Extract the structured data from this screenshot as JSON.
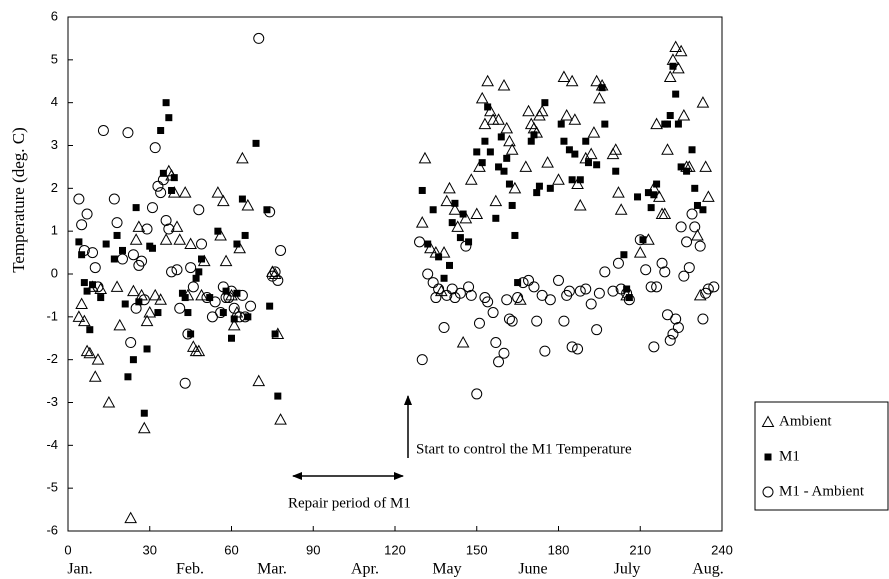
{
  "chart_data": {
    "type": "scatter",
    "y_label": "Temperature (deg. C)",
    "xlim": [
      0,
      240
    ],
    "xticks": [
      0,
      30,
      60,
      90,
      120,
      150,
      180,
      210,
      240
    ],
    "ylim": [
      -6,
      6
    ],
    "yticks": [
      -6,
      -5,
      -4,
      -3,
      -2,
      -1,
      0,
      1,
      2,
      3,
      4,
      5,
      6
    ],
    "grid": false,
    "legend": "outside-right",
    "month_labels": [
      "Jan.",
      "Feb.",
      "Mar.",
      "Apr.",
      "May",
      "June",
      "July",
      "Aug."
    ],
    "annotations": [
      "Repair period of M1",
      "Start to control the M1 Temperature"
    ],
    "series": [
      {
        "name": "Ambient",
        "marker": "triangle",
        "color": "#000000",
        "x": [
          4,
          5,
          6,
          7,
          8,
          9,
          10,
          11,
          12,
          15,
          18,
          19,
          23,
          24,
          25,
          26,
          27,
          28,
          29,
          30,
          32,
          34,
          36,
          37,
          38,
          39,
          40,
          41,
          43,
          44,
          45,
          46,
          47,
          48,
          49,
          50,
          55,
          56,
          57,
          58,
          60,
          61,
          62,
          63,
          64,
          66,
          70,
          75,
          77,
          78,
          76,
          130,
          131,
          133,
          135,
          137,
          138,
          139,
          140,
          142,
          143,
          145,
          146,
          148,
          150,
          151,
          152,
          153,
          154,
          155,
          156,
          157,
          158,
          160,
          161,
          162,
          163,
          164,
          166,
          168,
          169,
          170,
          171,
          172,
          173,
          174,
          176,
          180,
          182,
          183,
          185,
          186,
          187,
          188,
          190,
          192,
          193,
          194,
          195,
          196,
          200,
          201,
          202,
          203,
          205,
          210,
          213,
          215,
          216,
          217,
          218,
          219,
          220,
          221,
          222,
          223,
          224,
          225,
          226,
          227,
          228,
          231,
          232,
          233,
          234,
          235
        ],
        "values": [
          -1,
          -0.7,
          -1.1,
          -1.8,
          -1.85,
          -0.3,
          -2.4,
          -2,
          -0.35,
          -3,
          -0.3,
          -1.2,
          -5.7,
          -0.4,
          0.8,
          1.1,
          -0.5,
          -3.6,
          -1.1,
          -0.9,
          -0.5,
          -0.6,
          0.8,
          2.4,
          2.3,
          1.9,
          1.1,
          0.8,
          1.9,
          -0.5,
          0.7,
          -1.7,
          -1.8,
          -1.8,
          -0.5,
          0.3,
          1.9,
          0.9,
          1.7,
          0.3,
          -0.5,
          -1.2,
          -0.9,
          0.6,
          2.7,
          1.6,
          -2.5,
          0.05,
          -1.4,
          -3.4,
          0,
          1.2,
          2.7,
          0.6,
          0.5,
          -0.4,
          0.5,
          1.7,
          2,
          1.5,
          1.1,
          -1.6,
          1.3,
          2.2,
          1.4,
          2.5,
          4.1,
          3.5,
          4.5,
          3.8,
          3.6,
          1.7,
          3.6,
          4.4,
          3.4,
          3.1,
          2.9,
          2,
          -0.6,
          2.5,
          3.8,
          3.5,
          3.4,
          3.3,
          3.7,
          3.8,
          2.6,
          2.2,
          4.6,
          3.7,
          4.5,
          3.6,
          2.1,
          1.6,
          2.7,
          2.8,
          3.3,
          4.5,
          4.1,
          4.4,
          2.8,
          2.9,
          1.9,
          1.5,
          -0.5,
          0.5,
          0.8,
          2,
          3.5,
          1.8,
          1.4,
          1.4,
          2.9,
          4.6,
          5,
          5.3,
          4.8,
          5.2,
          3.7,
          2.5,
          2.5,
          0.9,
          -0.5,
          4,
          2.5,
          1.8
        ]
      },
      {
        "name": "M1",
        "marker": "square",
        "color": "#000000",
        "x": [
          4,
          5,
          6,
          7,
          8,
          9,
          12,
          14,
          17,
          18,
          20,
          21,
          22,
          24,
          25,
          26,
          28,
          29,
          30,
          31,
          33,
          34,
          35,
          36,
          37,
          38,
          39,
          42,
          43,
          44,
          45,
          47,
          48,
          49,
          52,
          55,
          57,
          58,
          60,
          61,
          62,
          64,
          65,
          66,
          69,
          73,
          74,
          76,
          77,
          62,
          130,
          132,
          134,
          136,
          138,
          140,
          141,
          142,
          144,
          145,
          147,
          150,
          152,
          153,
          154,
          155,
          157,
          158,
          159,
          160,
          161,
          162,
          163,
          164,
          165,
          170,
          171,
          172,
          173,
          175,
          177,
          181,
          182,
          184,
          185,
          186,
          188,
          190,
          191,
          194,
          196,
          197,
          201,
          204,
          205,
          206,
          209,
          211,
          213,
          214,
          215,
          216,
          219,
          220,
          221,
          222,
          223,
          224,
          225,
          227,
          229,
          230,
          231,
          233
        ],
        "values": [
          0.75,
          0.45,
          -0.2,
          -0.4,
          -1.3,
          -0.25,
          -0.55,
          0.7,
          0.35,
          0.9,
          0.55,
          -0.7,
          -2.4,
          -2,
          1.55,
          -0.65,
          -3.25,
          -1.75,
          0.65,
          0.6,
          -0.9,
          3.35,
          2.35,
          4,
          3.65,
          1.95,
          2.25,
          -0.45,
          -0.55,
          -0.9,
          -1.4,
          -0.1,
          0.05,
          0.35,
          -0.55,
          1,
          -0.9,
          -0.4,
          -1.5,
          -1.05,
          -0.45,
          1.75,
          0.9,
          -1,
          3.05,
          1.5,
          -0.75,
          -1.4,
          -2.85,
          0.7,
          1.95,
          0.7,
          1.5,
          0.4,
          -0.1,
          0.2,
          1.2,
          1.65,
          0.85,
          1.4,
          0.75,
          2.85,
          2.6,
          3.1,
          3.9,
          2.85,
          1.3,
          2.5,
          3.2,
          2.4,
          2.7,
          2.1,
          1.6,
          0.9,
          -0.2,
          3.1,
          3.25,
          1.9,
          2.05,
          4,
          2,
          3.5,
          3.1,
          2.9,
          2.2,
          2.8,
          2.2,
          3.1,
          2.6,
          2.55,
          4.35,
          3.5,
          2.4,
          0.45,
          -0.35,
          -0.55,
          1.8,
          0.8,
          1.9,
          1.55,
          1.85,
          2.1,
          3.5,
          3.5,
          3.7,
          4.85,
          4.2,
          3.5,
          2.5,
          2.4,
          2.9,
          2,
          1.6,
          1.5
        ]
      },
      {
        "name": "M1 - Ambient",
        "marker": "circle",
        "color": "#000000",
        "x": [
          4,
          5,
          6,
          7,
          9,
          10,
          11,
          13,
          17,
          18,
          20,
          22,
          23,
          24,
          25,
          26,
          27,
          28,
          29,
          31,
          32,
          33,
          34,
          35,
          36,
          37,
          38,
          40,
          41,
          43,
          44,
          45,
          46,
          48,
          49,
          51,
          53,
          54,
          56,
          57,
          58,
          59,
          60,
          61,
          63,
          64,
          65,
          67,
          70,
          74,
          75,
          76,
          77,
          78,
          129,
          130,
          132,
          134,
          135,
          136,
          138,
          139,
          141,
          142,
          144,
          146,
          147,
          148,
          150,
          151,
          153,
          154,
          156,
          157,
          158,
          160,
          161,
          162,
          163,
          165,
          167,
          169,
          171,
          172,
          174,
          175,
          177,
          180,
          182,
          183,
          184,
          185,
          187,
          188,
          190,
          192,
          194,
          195,
          197,
          200,
          202,
          203,
          205,
          206,
          210,
          212,
          214,
          215,
          216,
          218,
          219,
          220,
          221,
          222,
          223,
          224,
          225,
          226,
          227,
          228,
          229,
          230,
          232,
          233,
          234,
          235,
          237
        ],
        "values": [
          1.75,
          1.15,
          0.55,
          1.4,
          0.5,
          0.15,
          -0.3,
          3.35,
          1.75,
          1.2,
          0.35,
          3.3,
          -1.6,
          0.45,
          -0.8,
          0.2,
          0.3,
          -0.6,
          1.05,
          1.55,
          2.95,
          2.05,
          1.9,
          2.2,
          1.25,
          1.05,
          0.05,
          0.1,
          -0.8,
          -2.55,
          -1.4,
          0.15,
          -0.3,
          1.5,
          0.7,
          -0.55,
          -1,
          -0.65,
          -0.9,
          -0.3,
          -0.55,
          -0.55,
          -0.4,
          -0.8,
          -1,
          -0.5,
          -1,
          -0.75,
          5.5,
          1.45,
          -0.05,
          0.05,
          -0.15,
          0.55,
          0.75,
          -2,
          0,
          -0.2,
          -0.55,
          -0.35,
          -1.25,
          -0.5,
          -0.35,
          -0.55,
          -0.45,
          0.65,
          -0.3,
          -0.5,
          -2.8,
          -1.15,
          -0.55,
          -0.65,
          -0.9,
          -1.6,
          -2.05,
          -1.85,
          -0.6,
          -1.05,
          -1.1,
          -0.55,
          -0.2,
          -0.15,
          -0.3,
          -1.1,
          -0.5,
          -1.8,
          -0.6,
          -0.15,
          -1.1,
          -0.5,
          -0.4,
          -1.7,
          -1.75,
          -0.4,
          -0.35,
          -0.7,
          -1.3,
          -0.45,
          0.05,
          -0.4,
          0.25,
          -0.35,
          -0.45,
          -0.6,
          0.8,
          0.1,
          -0.3,
          -1.7,
          -0.3,
          0.25,
          0.05,
          -0.95,
          -1.55,
          -1.4,
          -1.05,
          -1.25,
          1.1,
          -0.05,
          0.75,
          0.15,
          1.4,
          1.1,
          0.65,
          -1.05,
          -0.45,
          -0.35,
          -0.3
        ]
      }
    ]
  }
}
